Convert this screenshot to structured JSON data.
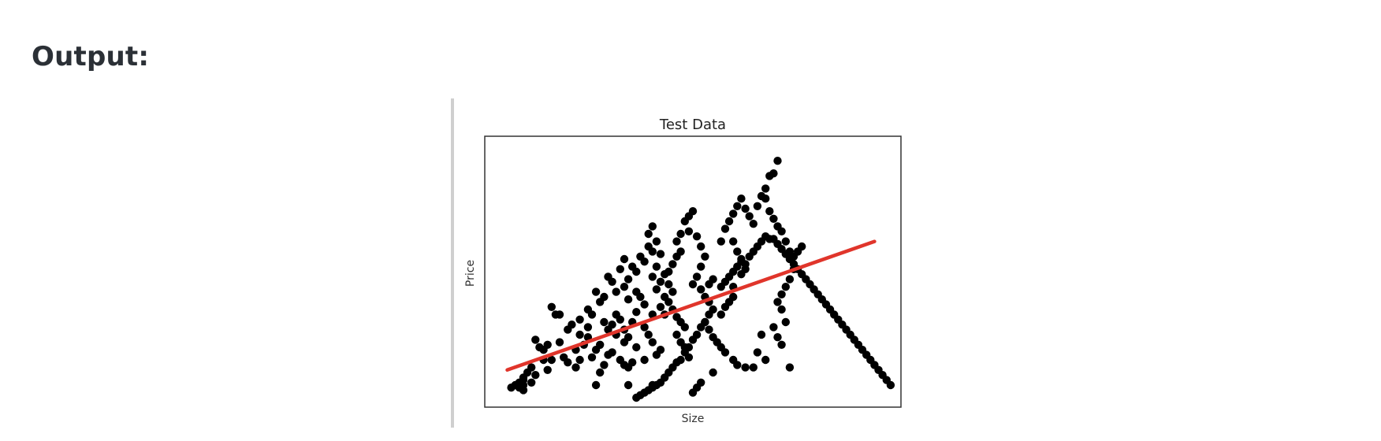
{
  "heading": "Output:",
  "chart_data": {
    "type": "scatter",
    "title": "Test Data",
    "xlabel": "Size",
    "ylabel": "Price",
    "xticks": false,
    "yticks": false,
    "grid": false,
    "xlim": [
      0,
      100
    ],
    "ylim": [
      0,
      100
    ],
    "points": [
      [
        8,
        7
      ],
      [
        13,
        19
      ],
      [
        12,
        20
      ],
      [
        11,
        23
      ],
      [
        14,
        21
      ],
      [
        17,
        22
      ],
      [
        19,
        27
      ],
      [
        20,
        29
      ],
      [
        17,
        33
      ],
      [
        15,
        36
      ],
      [
        16,
        33
      ],
      [
        22,
        25
      ],
      [
        24,
        24
      ],
      [
        23,
        21
      ],
      [
        21,
        19
      ],
      [
        27,
        21
      ],
      [
        31,
        25
      ],
      [
        33,
        22
      ],
      [
        29,
        17
      ],
      [
        30,
        18
      ],
      [
        26,
        19
      ],
      [
        25,
        16
      ],
      [
        22,
        31
      ],
      [
        24,
        28
      ],
      [
        25,
        33
      ],
      [
        28,
        30
      ],
      [
        29,
        27
      ],
      [
        30,
        29
      ],
      [
        32,
        31
      ],
      [
        31,
        33
      ],
      [
        34,
        24
      ],
      [
        33,
        27
      ],
      [
        35,
        30
      ],
      [
        36,
        34
      ],
      [
        34,
        39
      ],
      [
        36,
        42
      ],
      [
        37,
        40
      ],
      [
        38,
        37
      ],
      [
        40,
        33
      ],
      [
        38,
        28
      ],
      [
        39,
        25
      ],
      [
        40,
        22
      ],
      [
        41,
        17
      ],
      [
        42,
        19
      ],
      [
        38,
        15
      ],
      [
        35,
        14
      ],
      [
        36,
        20
      ],
      [
        26,
        42
      ],
      [
        24,
        35
      ],
      [
        27,
        38
      ],
      [
        28,
        40
      ],
      [
        30,
        46
      ],
      [
        29,
        48
      ],
      [
        31,
        42
      ],
      [
        33,
        44
      ],
      [
        34,
        47
      ],
      [
        32,
        51
      ],
      [
        33,
        55
      ],
      [
        35,
        52
      ],
      [
        36,
        50
      ],
      [
        37,
        56
      ],
      [
        38,
        54
      ],
      [
        39,
        60
      ],
      [
        40,
        58
      ],
      [
        39,
        65
      ],
      [
        40,
        68
      ],
      [
        41,
        62
      ],
      [
        42,
        57
      ],
      [
        41,
        52
      ],
      [
        40,
        48
      ],
      [
        43,
        49
      ],
      [
        44,
        45
      ],
      [
        45,
        42
      ],
      [
        44,
        38
      ],
      [
        45,
        35
      ],
      [
        46,
        32
      ],
      [
        47,
        30
      ],
      [
        48,
        28
      ],
      [
        46,
        25
      ],
      [
        47,
        22
      ],
      [
        48,
        20
      ],
      [
        49,
        16
      ],
      [
        43,
        33
      ],
      [
        42,
        36
      ],
      [
        43,
        40
      ],
      [
        41,
        43
      ],
      [
        42,
        46
      ],
      [
        44,
        50
      ],
      [
        45,
        53
      ],
      [
        46,
        56
      ],
      [
        47,
        58
      ],
      [
        46,
        62
      ],
      [
        47,
        65
      ],
      [
        48,
        70
      ],
      [
        49,
        72
      ],
      [
        50,
        74
      ],
      [
        49,
        66
      ],
      [
        51,
        64
      ],
      [
        52,
        60
      ],
      [
        53,
        56
      ],
      [
        52,
        52
      ],
      [
        51,
        48
      ],
      [
        50,
        45
      ],
      [
        52,
        43
      ],
      [
        54,
        45
      ],
      [
        55,
        47
      ],
      [
        53,
        40
      ],
      [
        54,
        38
      ],
      [
        55,
        35
      ],
      [
        53,
        30
      ],
      [
        54,
        27
      ],
      [
        55,
        24
      ],
      [
        56,
        22
      ],
      [
        57,
        20
      ],
      [
        58,
        18
      ],
      [
        57,
        33
      ],
      [
        58,
        36
      ],
      [
        59,
        38
      ],
      [
        60,
        40
      ],
      [
        60,
        44
      ],
      [
        62,
        49
      ],
      [
        63,
        51
      ],
      [
        62,
        55
      ],
      [
        61,
        58
      ],
      [
        60,
        62
      ],
      [
        57,
        62
      ],
      [
        58,
        67
      ],
      [
        59,
        70
      ],
      [
        60,
        73
      ],
      [
        61,
        76
      ],
      [
        62,
        79
      ],
      [
        63,
        75
      ],
      [
        64,
        72
      ],
      [
        65,
        69
      ],
      [
        66,
        76
      ],
      [
        67,
        80
      ],
      [
        68,
        83
      ],
      [
        69,
        88
      ],
      [
        70,
        89
      ],
      [
        71,
        94
      ],
      [
        68,
        79
      ],
      [
        69,
        74
      ],
      [
        70,
        71
      ],
      [
        71,
        68
      ],
      [
        72,
        66
      ],
      [
        73,
        62
      ],
      [
        74,
        58
      ],
      [
        75,
        56
      ],
      [
        76,
        58
      ],
      [
        77,
        60
      ],
      [
        75,
        51
      ],
      [
        74,
        47
      ],
      [
        73,
        44
      ],
      [
        72,
        41
      ],
      [
        71,
        38
      ],
      [
        72,
        35
      ],
      [
        73,
        30
      ],
      [
        70,
        28
      ],
      [
        71,
        24
      ],
      [
        72,
        21
      ],
      [
        67,
        25
      ],
      [
        66,
        18
      ],
      [
        68,
        15
      ],
      [
        74,
        12
      ],
      [
        65,
        12
      ],
      [
        63,
        12
      ],
      [
        61,
        13
      ],
      [
        60,
        15
      ],
      [
        55,
        10
      ],
      [
        52,
        6
      ],
      [
        51,
        4
      ],
      [
        50,
        2
      ],
      [
        28,
        13
      ],
      [
        32,
        15
      ],
      [
        33,
        13
      ],
      [
        34,
        12
      ],
      [
        26,
        5
      ],
      [
        27,
        10
      ],
      [
        34,
        5
      ],
      [
        40,
        5
      ],
      [
        21,
        12
      ],
      [
        19,
        14
      ],
      [
        22,
        15
      ],
      [
        18,
        16
      ],
      [
        15,
        15
      ],
      [
        13,
        15
      ],
      [
        14,
        11
      ],
      [
        10,
        12
      ],
      [
        11,
        9
      ],
      [
        9,
        10
      ],
      [
        8,
        8
      ],
      [
        10,
        6
      ],
      [
        8,
        5
      ],
      [
        7,
        4
      ],
      [
        8,
        3
      ],
      [
        7,
        6
      ],
      [
        6,
        5
      ],
      [
        5,
        4
      ],
      [
        54,
        33
      ],
      [
        53,
        30
      ],
      [
        52,
        28
      ],
      [
        51,
        25
      ],
      [
        50,
        23
      ],
      [
        49,
        20
      ],
      [
        48,
        18
      ],
      [
        47,
        15
      ],
      [
        46,
        14
      ],
      [
        45,
        12
      ],
      [
        44,
        10
      ],
      [
        43,
        8
      ],
      [
        42,
        6
      ],
      [
        41,
        5
      ],
      [
        40,
        4
      ],
      [
        39,
        3
      ],
      [
        38,
        2
      ],
      [
        37,
        1
      ],
      [
        36,
        0
      ],
      [
        57,
        44
      ],
      [
        58,
        46
      ],
      [
        59,
        48
      ],
      [
        60,
        50
      ],
      [
        61,
        52
      ],
      [
        62,
        54
      ],
      [
        63,
        53
      ],
      [
        64,
        56
      ],
      [
        65,
        58
      ],
      [
        66,
        60
      ],
      [
        67,
        62
      ],
      [
        68,
        64
      ],
      [
        69,
        63
      ],
      [
        70,
        63
      ],
      [
        71,
        61
      ],
      [
        72,
        59
      ],
      [
        73,
        57
      ],
      [
        74,
        55
      ],
      [
        75,
        53
      ],
      [
        76,
        51
      ],
      [
        77,
        49
      ],
      [
        78,
        47
      ],
      [
        79,
        45
      ],
      [
        80,
        43
      ],
      [
        81,
        41
      ],
      [
        82,
        39
      ],
      [
        83,
        37
      ],
      [
        84,
        35
      ],
      [
        85,
        33
      ],
      [
        86,
        31
      ],
      [
        87,
        29
      ],
      [
        88,
        27
      ],
      [
        89,
        25
      ],
      [
        90,
        23
      ],
      [
        91,
        21
      ],
      [
        92,
        19
      ],
      [
        93,
        17
      ],
      [
        94,
        15
      ],
      [
        95,
        13
      ],
      [
        96,
        11
      ],
      [
        97,
        9
      ],
      [
        98,
        7
      ],
      [
        99,
        5
      ]
    ],
    "fit_line": {
      "x": [
        4,
        95
      ],
      "y": [
        11,
        62
      ]
    },
    "point_color": "#000000",
    "line_color": "#e0352b"
  }
}
